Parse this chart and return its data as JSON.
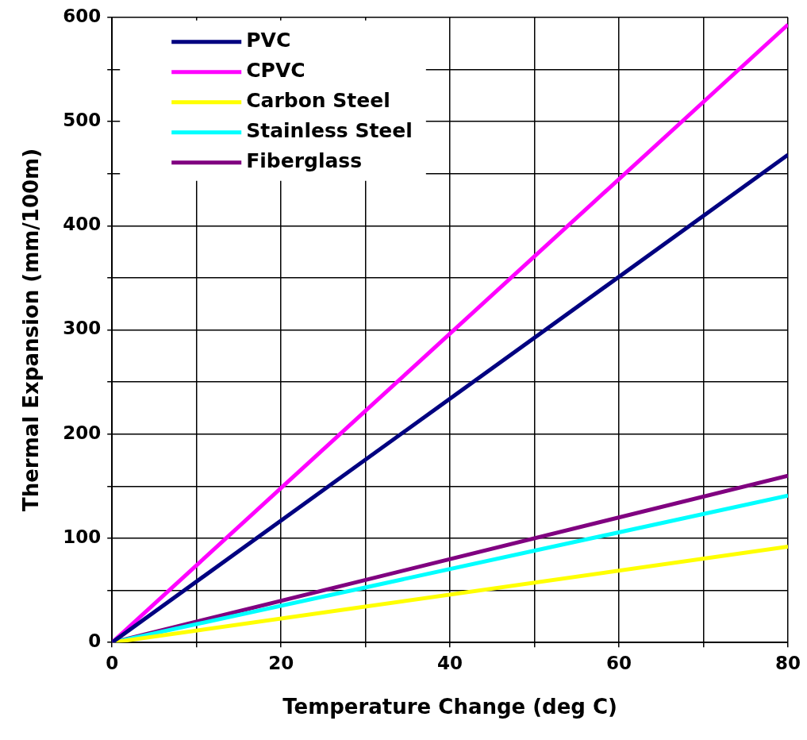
{
  "chart_data": {
    "type": "line",
    "xlabel": "Temperature Change (deg C)",
    "ylabel": "Thermal Expansion (mm/100m)",
    "x": [
      0,
      80
    ],
    "series": [
      {
        "name": "PVC",
        "color": "#000080",
        "values": [
          0,
          468
        ]
      },
      {
        "name": "CPVC",
        "color": "#ff00ff",
        "values": [
          0,
          593
        ]
      },
      {
        "name": "Carbon Steel",
        "color": "#ffff00",
        "values": [
          0,
          92
        ]
      },
      {
        "name": "Stainless Steel",
        "color": "#00ffff",
        "values": [
          0,
          141
        ]
      },
      {
        "name": "Fiberglass",
        "color": "#800080",
        "values": [
          0,
          160
        ]
      }
    ],
    "xlim": [
      0,
      80
    ],
    "xticks": [
      0,
      {
        "value": 10,
        "label": null
      },
      20,
      {
        "value": 30,
        "label": null
      },
      40,
      {
        "value": 50,
        "label": null
      },
      60,
      {
        "value": 70,
        "label": null
      },
      80
    ],
    "ylim": [
      0,
      600
    ],
    "yticks": [
      0,
      {
        "value": 50,
        "label": null
      },
      100,
      {
        "value": 150,
        "label": null
      },
      200,
      {
        "value": 250,
        "label": null
      },
      300,
      {
        "value": 350,
        "label": null
      },
      400,
      {
        "value": 450,
        "label": null
      },
      500,
      {
        "value": 550,
        "label": null
      },
      600
    ],
    "grid": true,
    "legend": "top left",
    "marker": "none",
    "line_style": "solid"
  }
}
